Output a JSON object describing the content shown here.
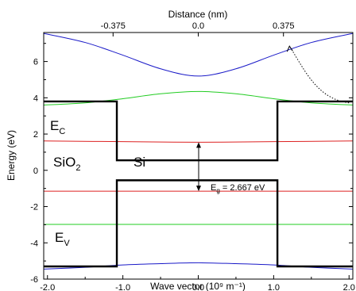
{
  "chart_data": {
    "type": "line",
    "title": "",
    "xlabel": "Wave vector (10⁹ m⁻¹)",
    "x2label": "Distance (nm)",
    "ylabel": "Energy (eV)",
    "xlim": [
      -2.05,
      2.05
    ],
    "ylim": [
      -6,
      7.6
    ],
    "x_ticks": [
      -2.0,
      -1.0,
      0.0,
      1.0,
      2.0
    ],
    "x_tick_labels": [
      "-2.0",
      "-1.0",
      "0.0",
      "1.0",
      "2.0"
    ],
    "y_ticks": [
      -6,
      -4,
      -2,
      0,
      2,
      4,
      6
    ],
    "y_tick_labels": [
      "-6",
      "-4",
      "-2",
      "0",
      "2",
      "4",
      "6"
    ],
    "x2_ticks": [
      -0.375,
      0.0,
      0.375
    ],
    "x2_tick_labels": [
      "-0.375",
      "0.0",
      "0.375"
    ],
    "x2_tick_positions_in_x_units": [
      -1.13,
      0.0,
      1.13
    ],
    "grid": false,
    "legend": "none",
    "series": [
      {
        "color": "#1a1ac8",
        "x": [
          -2.05,
          -1.5,
          -1.0,
          -0.5,
          0.0,
          0.5,
          1.0,
          1.5,
          2.05
        ],
        "y": [
          7.55,
          7.05,
          6.35,
          5.6,
          5.2,
          5.6,
          6.35,
          7.05,
          7.55
        ]
      },
      {
        "color": "#22cc22",
        "x": [
          -2.05,
          -1.5,
          -1.0,
          -0.5,
          0.0,
          0.5,
          1.0,
          1.5,
          2.05
        ],
        "y": [
          3.6,
          3.72,
          3.95,
          4.22,
          4.35,
          4.22,
          3.95,
          3.72,
          3.6
        ]
      },
      {
        "color": "#dd2222",
        "x": [
          -2.05,
          -1.0,
          0.0,
          1.0,
          2.05
        ],
        "y": [
          1.62,
          1.58,
          1.55,
          1.58,
          1.62
        ]
      },
      {
        "color": "#dd2222",
        "x": [
          -2.05,
          0.0,
          2.05
        ],
        "y": [
          -1.15,
          -1.15,
          -1.15
        ]
      },
      {
        "color": "#22cc22",
        "x": [
          -2.05,
          0.0,
          2.05
        ],
        "y": [
          -2.98,
          -2.98,
          -2.98
        ]
      },
      {
        "color": "#1a1ac8",
        "x": [
          -2.05,
          -1.5,
          -1.0,
          -0.5,
          0.0,
          0.5,
          1.0,
          1.5,
          2.05
        ],
        "y": [
          -5.45,
          -5.35,
          -5.22,
          -5.15,
          -5.1,
          -5.15,
          -5.22,
          -5.35,
          -5.45
        ]
      },
      {
        "color": "#000000",
        "x": [
          -2.05,
          -1.08,
          -1.08,
          1.05,
          1.05,
          2.05
        ],
        "y": [
          3.8,
          3.8,
          0.55,
          0.55,
          3.8,
          3.8
        ]
      },
      {
        "color": "#000000",
        "x": [
          -2.05,
          -1.08,
          -1.08,
          1.05,
          1.05,
          2.05
        ],
        "y": [
          -5.3,
          -5.3,
          -0.55,
          -0.55,
          -5.3,
          -5.3
        ]
      }
    ],
    "annotations": {
      "ec_main": "E",
      "ec_sub": "C",
      "ev_main": "E",
      "ev_sub": "V",
      "sio2_main": "SiO",
      "sio2_sub": "2",
      "si": "Si",
      "gap_main": "E",
      "gap_sub": "g",
      "gap_value": " = 2.667 eV"
    }
  }
}
